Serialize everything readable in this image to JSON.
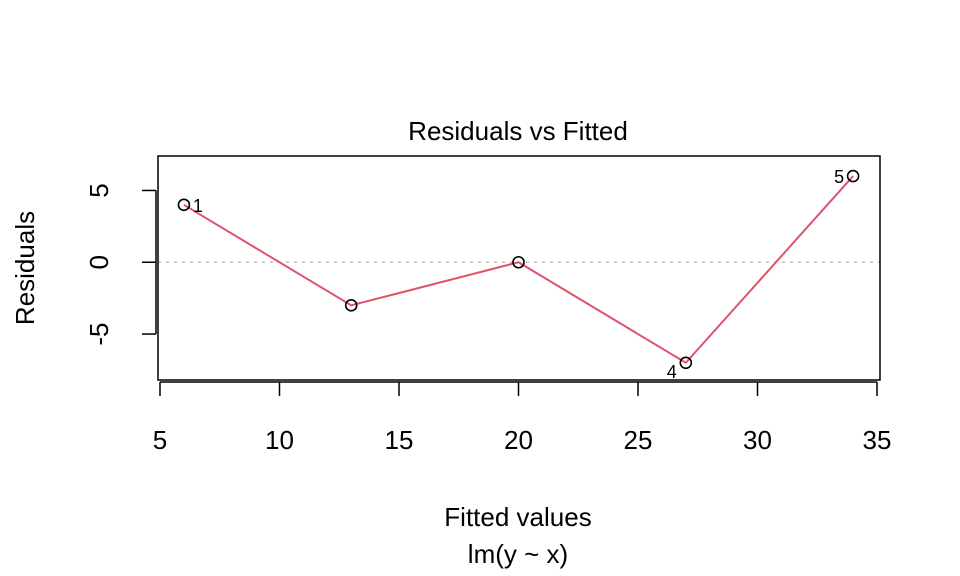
{
  "chart_data": {
    "type": "scatter",
    "title": "Residuals vs Fitted",
    "xlabel": "Fitted values",
    "ylabel": "Residuals",
    "subtitle": "lm(y ~ x)",
    "xlim": [
      5,
      35
    ],
    "ylim": [
      -8.2,
      7.4
    ],
    "x_ticks": [
      5,
      10,
      15,
      20,
      25,
      30,
      35
    ],
    "y_ticks": [
      -5,
      0,
      5
    ],
    "points": [
      {
        "x": 6,
        "y": 4,
        "label": "1"
      },
      {
        "x": 13,
        "y": -3,
        "label": ""
      },
      {
        "x": 20,
        "y": 0,
        "label": ""
      },
      {
        "x": 27,
        "y": -7,
        "label": "4"
      },
      {
        "x": 34,
        "y": 6,
        "label": "5"
      }
    ],
    "smoother": {
      "x": [
        6,
        13,
        20,
        27,
        34
      ],
      "y": [
        4,
        -3,
        0,
        -7,
        6
      ],
      "color": "#DF536B"
    },
    "reference_line": {
      "y": 0,
      "color": "#BEBEBE",
      "style": "dotted"
    },
    "grid": false
  }
}
